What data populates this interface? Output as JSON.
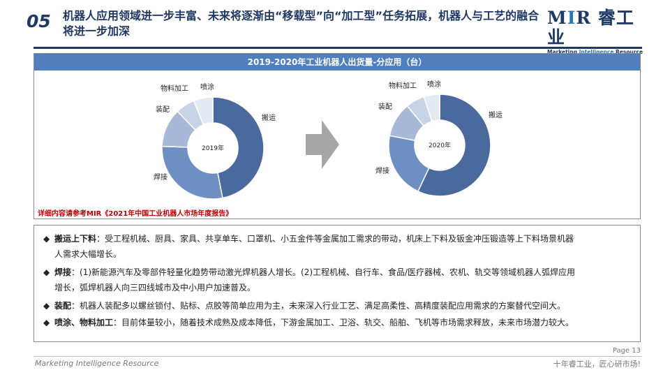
{
  "header": {
    "section_number": "05",
    "title": "机器人应用领域进一步丰富、未来将逐渐由“移载型”向“加工型”任务拓展，机器人与工艺的融合将进一步加深",
    "logo_text": "MIR睿工业",
    "logo_subtitle": "Marketing Intelligence Resource"
  },
  "chart_panel": {
    "header": "2019-2020年工业机器人出货量-分应用（台）",
    "source_note": "详细内容请参考MIR《2021年中国工业机器人市场年度报告》"
  },
  "chart_data": [
    {
      "type": "pie",
      "center_label": "2019年",
      "categories": [
        "搬运",
        "焊接",
        "装配",
        "物料加工",
        "喷涂"
      ],
      "values": [
        46,
        28,
        12,
        6,
        6
      ],
      "colors": [
        "#4a6a9e",
        "#6e8fc2",
        "#a7b9d6",
        "#c7d4e7",
        "#e4e9f2"
      ]
    },
    {
      "type": "pie",
      "center_label": "2020年",
      "categories": [
        "搬运",
        "焊接",
        "装配",
        "物料加工",
        "喷涂"
      ],
      "values": [
        57,
        21,
        11,
        6,
        5
      ],
      "colors": [
        "#4a6a9e",
        "#6e8fc2",
        "#a7b9d6",
        "#c7d4e7",
        "#e4e9f2"
      ]
    }
  ],
  "bullets": [
    {
      "head": "搬运上下料",
      "lines": [
        "：受工程机械、厨具、家具、共享单车、口罩机、小五金件等金属加工需求的带动，机床上下料及钣金冲压锻造等上下料场景机器",
        "人需求大幅增长。"
      ]
    },
    {
      "head": "焊接",
      "lines": [
        "：(1)新能源汽车及零部件轻量化趋势带动激光焊机器人增长。(2)工程机械、自行车、食品/医疗器械、农机、轨交等领域机器人弧焊应用",
        "增长，弧焊机器人向三四线城市及中小用户加速普及。"
      ]
    },
    {
      "head": "装配",
      "lines": [
        "：机器人装配多以螺丝锁付、贴标、点胶等简单应用为主，未来深入行业工艺、满足高柔性、高精度装配应用需求的方案替代空间大。"
      ]
    },
    {
      "head": "喷涂、物料加工",
      "lines": [
        "：目前体量较小，随着技术成熟及成本降低，下游金属加工、卫浴、轨交、船舶、飞机等市场需求释放，未来市场潜力较大。"
      ]
    }
  ],
  "footer": {
    "page": "Page 13",
    "left": "Marketing Intelligence Resource",
    "right": "十年睿工业，匠心研市场!"
  }
}
